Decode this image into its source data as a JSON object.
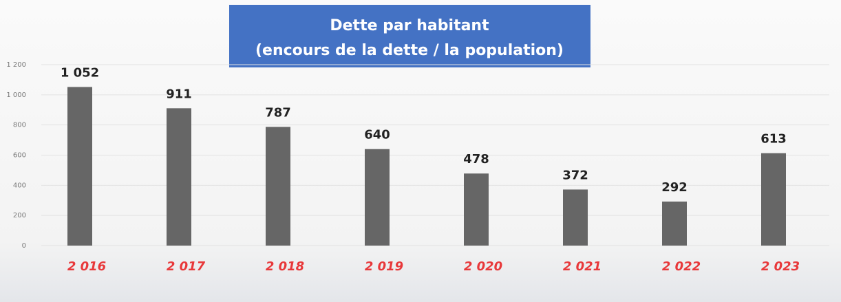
{
  "chart_data": {
    "type": "bar",
    "title": "Dette par habitant",
    "subtitle": "(encours de la dette / la population)",
    "categories": [
      "2 016",
      "2 017",
      "2 018",
      "2 019",
      "2 020",
      "2 021",
      "2 022",
      "2 023"
    ],
    "values": [
      1052,
      911,
      787,
      640,
      478,
      372,
      292,
      613
    ],
    "value_labels": [
      "1 052",
      "911",
      "787",
      "640",
      "478",
      "372",
      "292",
      "613"
    ],
    "color": "#666666",
    "ylim": [
      0,
      1200
    ],
    "yticks": [
      0,
      200,
      400,
      600,
      800,
      {
        "value": 1000,
        "label": "1 000"
      },
      {
        "value": 1200,
        "label": "1 200"
      }
    ],
    "grid": true
  }
}
